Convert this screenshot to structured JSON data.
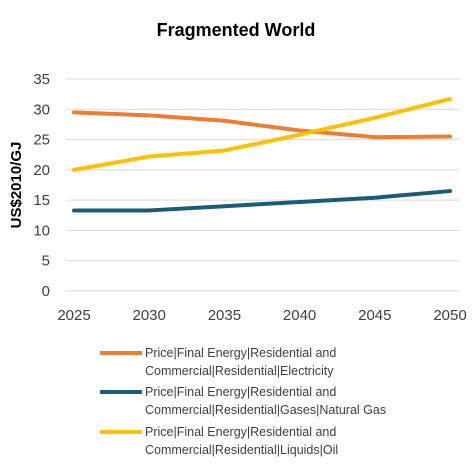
{
  "chart_data": {
    "type": "line",
    "title": "Fragmented World",
    "xlabel": "",
    "ylabel": "US$2010/GJ",
    "x": [
      2025,
      2030,
      2035,
      2040,
      2045,
      2050
    ],
    "x_ticks": [
      "2025",
      "2030",
      "2035",
      "2040",
      "2045",
      "2050"
    ],
    "y_ticks": [
      "0",
      "5",
      "10",
      "15",
      "20",
      "25",
      "30",
      "35"
    ],
    "ylim": [
      0,
      35
    ],
    "grid": true,
    "legend_position": "bottom",
    "series": [
      {
        "name": "Price|Final Energy|Residential and Commercial|Residential|Electricity",
        "name_lines": [
          "Price|Final Energy|Residential and",
          "Commercial|Residential|Electricity"
        ],
        "color": "#ed7d31",
        "values": [
          29.5,
          29.0,
          28.1,
          26.5,
          25.4,
          25.5
        ]
      },
      {
        "name": "Price|Final Energy|Residential and Commercial|Residential|Gases|Natural Gas",
        "name_lines": [
          "Price|Final Energy|Residential and",
          "Commercial|Residential|Gases|Natural Gas"
        ],
        "color": "#1a5b7a",
        "values": [
          13.3,
          13.3,
          14.0,
          14.7,
          15.4,
          16.5
        ]
      },
      {
        "name": "Price|Final Energy|Residential and Commercial|Residential|Liquids|Oil",
        "name_lines": [
          "Price|Final Energy|Residential and",
          "Commercial|Residential|Liquids|Oil"
        ],
        "color": "#ffc000",
        "values": [
          20.0,
          22.2,
          23.2,
          25.8,
          28.6,
          31.7
        ]
      }
    ]
  }
}
